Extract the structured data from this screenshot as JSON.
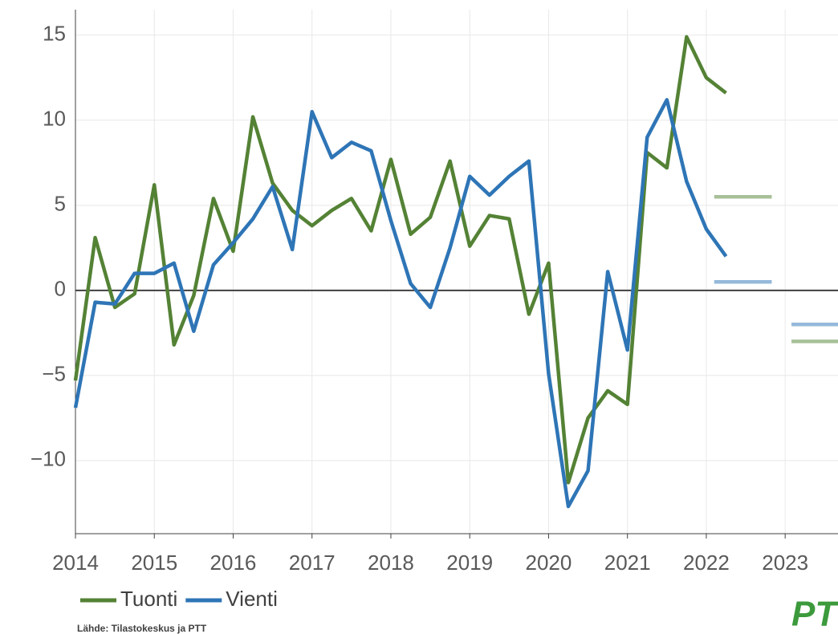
{
  "chart_data": {
    "type": "line",
    "x": [
      2014,
      2014.25,
      2014.5,
      2014.75,
      2015,
      2015.25,
      2015.5,
      2015.75,
      2016,
      2016.25,
      2016.5,
      2016.75,
      2017,
      2017.25,
      2017.5,
      2017.75,
      2018,
      2018.25,
      2018.5,
      2018.75,
      2019,
      2019.25,
      2019.5,
      2019.75,
      2020,
      2020.25,
      2020.5,
      2020.75,
      2021,
      2021.25,
      2021.5,
      2021.75,
      2022,
      2022.25
    ],
    "series": [
      {
        "name": "Tuonti",
        "color": "#548235",
        "values": [
          -5.3,
          3.1,
          -1.0,
          -0.2,
          6.2,
          -3.2,
          -0.3,
          5.4,
          2.3,
          10.2,
          6.3,
          4.7,
          3.8,
          4.7,
          5.4,
          3.5,
          7.7,
          3.3,
          4.3,
          7.6,
          2.6,
          4.4,
          4.2,
          -1.4,
          1.6,
          -11.3,
          -7.5,
          -5.9,
          -6.7,
          8.1,
          7.2,
          14.9,
          12.5,
          11.6
        ],
        "forecast": [
          {
            "x": [
              2022.1,
              2022.83
            ],
            "value": 5.5
          },
          {
            "x": [
              2023.08,
              2023.67
            ],
            "value": -3.0
          }
        ]
      },
      {
        "name": "Vienti",
        "color": "#2e75b6",
        "values": [
          -6.9,
          -0.7,
          -0.8,
          1.0,
          1.0,
          1.6,
          -2.4,
          1.5,
          2.8,
          4.2,
          6.1,
          2.4,
          10.5,
          7.8,
          8.7,
          8.2,
          4.1,
          0.4,
          -1.0,
          2.5,
          6.7,
          5.6,
          6.7,
          7.6,
          -4.9,
          -12.7,
          -10.6,
          1.1,
          -3.5,
          9.0,
          11.2,
          6.4,
          3.6,
          2.0
        ],
        "forecast": [
          {
            "x": [
              2022.1,
              2022.83
            ],
            "value": 0.5
          },
          {
            "x": [
              2023.08,
              2023.67
            ],
            "value": -2.0
          }
        ]
      }
    ],
    "xlim": [
      2014,
      2023.67
    ],
    "xticks": [
      2014,
      2015,
      2016,
      2017,
      2018,
      2019,
      2020,
      2021,
      2022,
      2023
    ],
    "ylim": [
      -14.3,
      16.5
    ],
    "yticks": [
      -10,
      -5,
      0,
      5,
      10,
      15
    ],
    "ytick_labels": [
      "−10",
      "−5",
      "0",
      "5",
      "10",
      "15"
    ],
    "grid": true,
    "source": "Lähde: Tilastokeskus ja PTT",
    "logo": "PTT"
  }
}
